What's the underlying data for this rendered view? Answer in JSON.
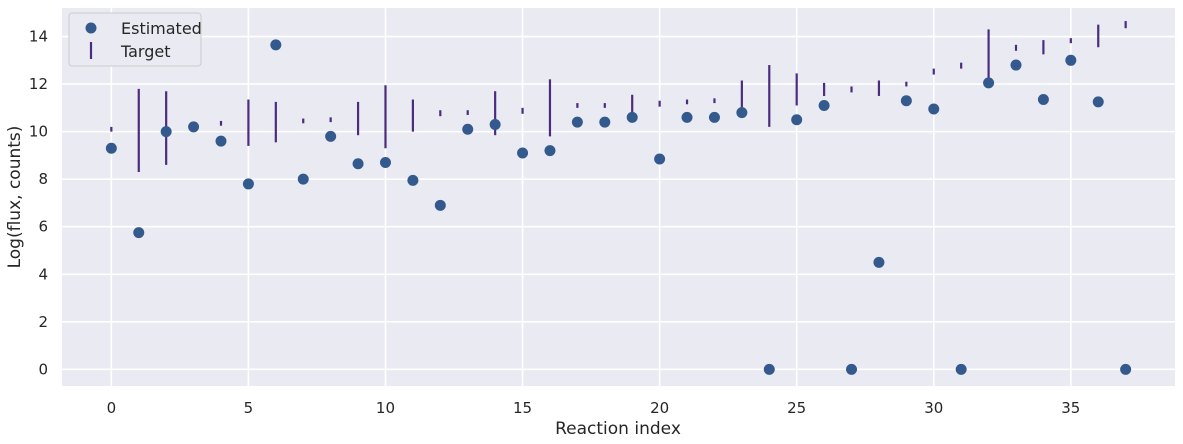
{
  "chart_data": {
    "type": "scatter",
    "xlabel": "Reaction index",
    "ylabel": "Log(flux, counts)",
    "xlim": [
      -1.8,
      38.8
    ],
    "ylim": [
      -0.7,
      15.2
    ],
    "xticks": [
      0,
      5,
      10,
      15,
      20,
      25,
      30,
      35
    ],
    "yticks": [
      0,
      2,
      4,
      6,
      8,
      10,
      12,
      14
    ],
    "grid": true,
    "legend_position": "top-left",
    "colors": {
      "background": "#eaeaf2",
      "grid": "#ffffff",
      "estimated": "#345a8d",
      "target": "#4b2c7e"
    },
    "series": [
      {
        "name": "Estimated",
        "marker": "circle",
        "x": [
          0,
          1,
          2,
          3,
          4,
          5,
          6,
          7,
          8,
          9,
          10,
          11,
          12,
          13,
          14,
          15,
          16,
          17,
          18,
          19,
          20,
          21,
          22,
          23,
          24,
          25,
          26,
          27,
          28,
          29,
          30,
          31,
          32,
          33,
          34,
          35,
          36,
          37
        ],
        "y": [
          9.3,
          5.75,
          10.0,
          10.2,
          9.6,
          7.8,
          13.65,
          8.0,
          9.8,
          8.65,
          8.7,
          7.95,
          6.9,
          10.1,
          10.3,
          9.1,
          9.2,
          10.4,
          10.4,
          10.6,
          8.85,
          10.6,
          10.6,
          10.8,
          0.0,
          10.5,
          11.1,
          0.0,
          4.5,
          11.3,
          10.95,
          0.0,
          12.05,
          12.8,
          11.35,
          13.0,
          11.25,
          0.0
        ]
      },
      {
        "name": "Target",
        "marker": "vertical-range",
        "x": [
          0,
          1,
          2,
          3,
          4,
          5,
          6,
          7,
          8,
          9,
          10,
          11,
          12,
          13,
          14,
          15,
          16,
          17,
          18,
          19,
          20,
          21,
          22,
          23,
          24,
          25,
          26,
          27,
          28,
          29,
          30,
          31,
          32,
          33,
          34,
          35,
          36,
          37
        ],
        "low": [
          10.0,
          8.3,
          8.6,
          10.3,
          10.25,
          9.4,
          9.55,
          10.35,
          10.4,
          9.85,
          9.3,
          10.0,
          10.65,
          10.7,
          9.85,
          10.75,
          9.8,
          11.0,
          11.0,
          10.8,
          11.05,
          11.15,
          11.2,
          11.0,
          10.2,
          11.1,
          11.5,
          11.65,
          11.5,
          11.9,
          12.4,
          12.65,
          11.9,
          13.4,
          13.25,
          13.75,
          13.55,
          14.35
        ],
        "high": [
          10.2,
          11.8,
          11.7,
          10.3,
          10.45,
          11.35,
          11.25,
          10.55,
          10.6,
          11.25,
          11.95,
          11.35,
          10.9,
          10.9,
          11.7,
          11.0,
          12.2,
          11.2,
          11.2,
          11.55,
          11.3,
          11.35,
          11.4,
          12.15,
          12.8,
          12.45,
          12.05,
          11.9,
          12.15,
          12.1,
          12.65,
          12.9,
          14.3,
          13.65,
          13.85,
          13.9,
          14.5,
          14.65
        ]
      }
    ]
  }
}
